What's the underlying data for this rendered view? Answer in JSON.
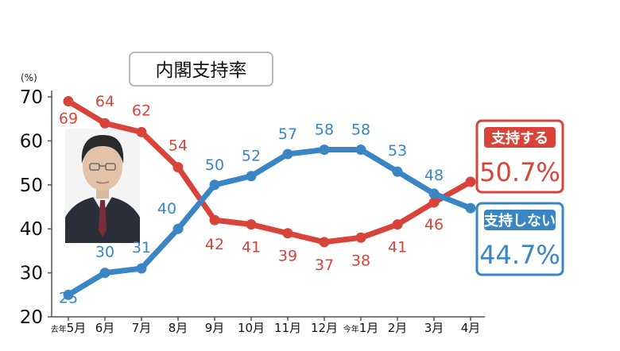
{
  "chart_data": {
    "type": "line",
    "title": "内閣支持率",
    "yunit": "(%)",
    "ylim": [
      20,
      70
    ],
    "yticks": [
      20,
      30,
      40,
      50,
      60,
      70
    ],
    "grid": false,
    "categories": [
      {
        "main": "5月",
        "prefix": "去年"
      },
      {
        "main": "6月",
        "prefix": ""
      },
      {
        "main": "7月",
        "prefix": ""
      },
      {
        "main": "8月",
        "prefix": ""
      },
      {
        "main": "9月",
        "prefix": ""
      },
      {
        "main": "10月",
        "prefix": ""
      },
      {
        "main": "11月",
        "prefix": ""
      },
      {
        "main": "12月",
        "prefix": ""
      },
      {
        "main": "1月",
        "prefix": "今年"
      },
      {
        "main": "2月",
        "prefix": ""
      },
      {
        "main": "3月",
        "prefix": ""
      },
      {
        "main": "4月",
        "prefix": ""
      }
    ],
    "series": [
      {
        "name": "支持する",
        "color": "#d9443a",
        "values": [
          69,
          64,
          62,
          54,
          42,
          41,
          39,
          37,
          38,
          41,
          46,
          50.7
        ],
        "labels": [
          "69",
          "64",
          "62",
          "54",
          "42",
          "41",
          "39",
          "37",
          "38",
          "41",
          "46",
          ""
        ],
        "final_value_label": "50.7%"
      },
      {
        "name": "支持しない",
        "color": "#3a86c4",
        "values": [
          25,
          30,
          31,
          40,
          50,
          52,
          57,
          58,
          58,
          53,
          48,
          44.7
        ],
        "labels": [
          "25",
          "30",
          "31",
          "40",
          "50",
          "52",
          "57",
          "58",
          "58",
          "53",
          "48",
          ""
        ],
        "final_value_label": "44.7%"
      }
    ]
  }
}
